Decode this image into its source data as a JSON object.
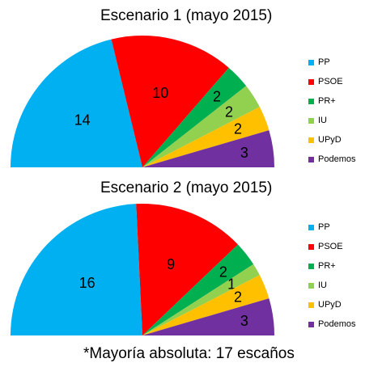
{
  "chart_data": [
    {
      "type": "pie",
      "title": "Escenario 1 (mayo 2015)",
      "categories": [
        "PP",
        "PSOE",
        "PR+",
        "IU",
        "UPyD",
        "Podemos"
      ],
      "values": [
        14,
        10,
        2,
        2,
        2,
        3
      ],
      "colors": [
        "#00b0f0",
        "#ff0000",
        "#00b050",
        "#92d050",
        "#ffc000",
        "#7030a0"
      ],
      "legend_position": "right"
    },
    {
      "type": "pie",
      "title": "Escenario 2 (mayo 2015)",
      "categories": [
        "PP",
        "PSOE",
        "PR+",
        "IU",
        "UPyD",
        "Podemos"
      ],
      "values": [
        16,
        9,
        2,
        1,
        2,
        3
      ],
      "colors": [
        "#00b0f0",
        "#ff0000",
        "#00b050",
        "#92d050",
        "#ffc000",
        "#7030a0"
      ],
      "legend_position": "right"
    }
  ],
  "footnote": "*Mayoría absoluta: 17 escaños"
}
